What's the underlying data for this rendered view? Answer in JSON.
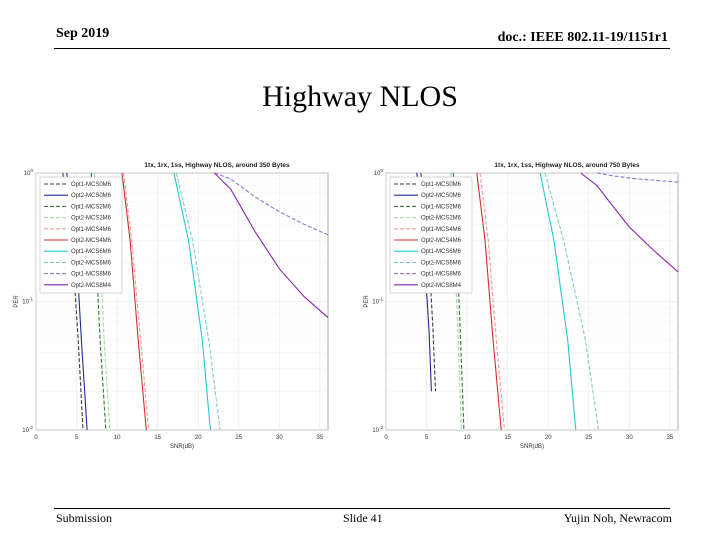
{
  "header": {
    "date": "Sep 2019",
    "doc": "doc.: IEEE 802.11-19/1151r1"
  },
  "slide": {
    "title": "Highway NLOS"
  },
  "footer": {
    "left": "Submission",
    "center": "Slide 41",
    "right": "Yujin Noh, Newracom"
  },
  "chart_data": [
    {
      "type": "line",
      "title": "1tx, 1rx, 1ss, Highway NLOS, around 350 Bytes",
      "xlabel": "SNR(dB)",
      "ylabel": "PER",
      "xlim": [
        0,
        36
      ],
      "ylim": [
        0.01,
        1
      ],
      "yscale": "log",
      "xticks": [
        "0",
        "5",
        "10",
        "15",
        "20",
        "25",
        "30",
        "35"
      ],
      "yticks": [
        "10^0",
        "10^-1",
        "10^-2"
      ],
      "legend_position": "top-left",
      "series": [
        {
          "name": "Opt1-MCS0M6",
          "color": "#3b3b3b",
          "dash": true,
          "x": [
            3.3,
            4.4,
            5.2,
            5.8
          ],
          "y": [
            1,
            0.3,
            0.05,
            0.01
          ]
        },
        {
          "name": "Opt2-MCS0M6",
          "color": "#1f2f8f",
          "dash": false,
          "x": [
            3.8,
            4.9,
            5.6,
            6.3
          ],
          "y": [
            1,
            0.3,
            0.05,
            0.01
          ]
        },
        {
          "name": "Opt1-MCS2M6",
          "color": "#2e7d32",
          "dash": true,
          "x": [
            6.8,
            7.3,
            7.9,
            8.6
          ],
          "y": [
            1,
            0.3,
            0.05,
            0.01
          ]
        },
        {
          "name": "Opt2-MCS2M6",
          "color": "#a5d6a7",
          "dash": true,
          "x": [
            7.2,
            7.8,
            8.4,
            9.1
          ],
          "y": [
            1,
            0.3,
            0.05,
            0.01
          ]
        },
        {
          "name": "Opt1-MCS4M6",
          "color": "#ef9a9a",
          "dash": true,
          "x": [
            10.8,
            11.8,
            12.9,
            13.9
          ],
          "y": [
            1,
            0.3,
            0.05,
            0.01
          ]
        },
        {
          "name": "Opt2-MCS4M6",
          "color": "#d32f2f",
          "dash": false,
          "x": [
            10.6,
            11.6,
            12.6,
            13.6
          ],
          "y": [
            1,
            0.3,
            0.05,
            0.01
          ]
        },
        {
          "name": "Opt1-MCS6M6",
          "color": "#26c6da",
          "dash": false,
          "x": [
            17,
            18.8,
            20.5,
            21.5
          ],
          "y": [
            1,
            0.3,
            0.05,
            0.01
          ]
        },
        {
          "name": "Opt2-MCS6M6",
          "color": "#80cbc4",
          "dash": true,
          "x": [
            17.3,
            19.3,
            21.3,
            22.7
          ],
          "y": [
            1,
            0.3,
            0.05,
            0.01
          ]
        },
        {
          "name": "Opt1-MCS8M6",
          "color": "#9575cd",
          "dash": true,
          "x": [
            22,
            24,
            27,
            30,
            33,
            36
          ],
          "y": [
            1,
            0.9,
            0.65,
            0.5,
            0.4,
            0.33
          ]
        },
        {
          "name": "Opt2-MCS8M4",
          "color": "#8e24aa",
          "dash": false,
          "x": [
            22,
            24,
            27,
            30,
            33,
            36
          ],
          "y": [
            1,
            0.75,
            0.35,
            0.18,
            0.11,
            0.075
          ]
        }
      ]
    },
    {
      "type": "line",
      "title": "1tx, 1rx, 1ss, Highway NLOS, around 750 Bytes",
      "xlabel": "SNR(dB)",
      "ylabel": "PER",
      "xlim": [
        0,
        36
      ],
      "ylim": [
        0.01,
        1
      ],
      "yscale": "log",
      "xticks": [
        "0",
        "5",
        "10",
        "15",
        "20",
        "25",
        "30",
        "35"
      ],
      "yticks": [
        "10^0",
        "10^-1",
        "10^-2"
      ],
      "legend_position": "top-left",
      "series": [
        {
          "name": "Opt1-MCS0M6",
          "color": "#3b3b3b",
          "dash": true,
          "x": [
            4.3,
            5.2,
            5.8,
            6.1
          ],
          "y": [
            1,
            0.3,
            0.06,
            0.02
          ]
        },
        {
          "name": "Opt2-MCS0M6",
          "color": "#1f2f8f",
          "dash": false,
          "x": [
            3.8,
            4.6,
            5.3,
            5.6
          ],
          "y": [
            1,
            0.3,
            0.06,
            0.02
          ]
        },
        {
          "name": "Opt1-MCS2M6",
          "color": "#2e7d32",
          "dash": true,
          "x": [
            8.3,
            8.7,
            9.2,
            9.6
          ],
          "y": [
            1,
            0.3,
            0.05,
            0.01
          ]
        },
        {
          "name": "Opt2-MCS2M6",
          "color": "#a5d6a7",
          "dash": true,
          "x": [
            8.0,
            8.4,
            8.9,
            9.3
          ],
          "y": [
            1,
            0.3,
            0.05,
            0.01
          ]
        },
        {
          "name": "Opt1-MCS4M6",
          "color": "#ef9a9a",
          "dash": true,
          "x": [
            11.6,
            12.6,
            13.6,
            14.6
          ],
          "y": [
            1,
            0.3,
            0.05,
            0.01
          ]
        },
        {
          "name": "Opt2-MCS4M6",
          "color": "#d32f2f",
          "dash": false,
          "x": [
            11.2,
            12.2,
            13.2,
            14.2
          ],
          "y": [
            1,
            0.3,
            0.05,
            0.01
          ]
        },
        {
          "name": "Opt1-MCS6M6",
          "color": "#26c6da",
          "dash": false,
          "x": [
            19,
            20.7,
            22.4,
            23.4
          ],
          "y": [
            1,
            0.3,
            0.05,
            0.01
          ]
        },
        {
          "name": "Opt2-MCS6M6",
          "color": "#80cbc4",
          "dash": true,
          "x": [
            19.6,
            21.9,
            24.6,
            26.2
          ],
          "y": [
            1,
            0.3,
            0.05,
            0.01
          ]
        },
        {
          "name": "Opt1-MCS8M6",
          "color": "#9575cd",
          "dash": true,
          "x": [
            26,
            28,
            31,
            36
          ],
          "y": [
            1,
            0.95,
            0.9,
            0.85
          ]
        },
        {
          "name": "Opt2-MCS8M4",
          "color": "#8e24aa",
          "dash": false,
          "x": [
            24,
            26,
            28,
            30,
            33,
            36
          ],
          "y": [
            1,
            0.8,
            0.55,
            0.38,
            0.25,
            0.17
          ]
        }
      ]
    }
  ]
}
